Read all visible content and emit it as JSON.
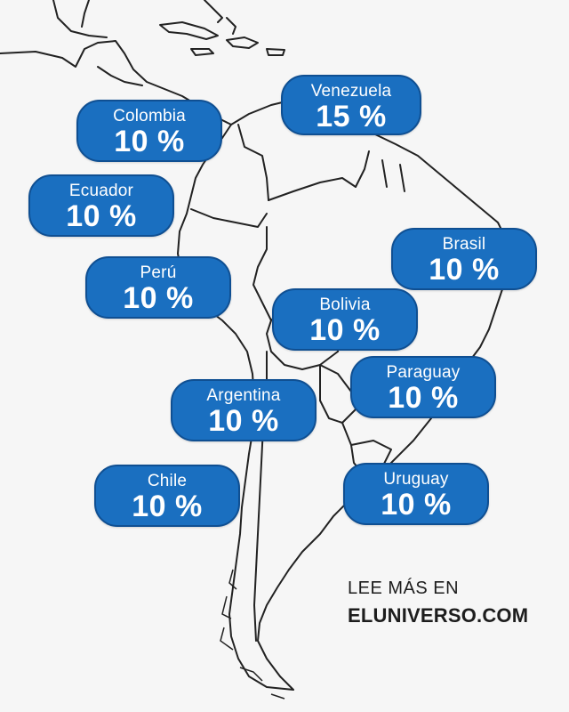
{
  "countries": [
    {
      "name": "Venezuela",
      "value": "15 %"
    },
    {
      "name": "Colombia",
      "value": "10 %"
    },
    {
      "name": "Ecuador",
      "value": "10 %"
    },
    {
      "name": "Brasil",
      "value": "10 %"
    },
    {
      "name": "Perú",
      "value": "10 %"
    },
    {
      "name": "Bolivia",
      "value": "10 %"
    },
    {
      "name": "Paraguay",
      "value": "10 %"
    },
    {
      "name": "Argentina",
      "value": "10 %"
    },
    {
      "name": "Chile",
      "value": "10 %"
    },
    {
      "name": "Uruguay",
      "value": "10 %"
    }
  ],
  "footer": {
    "line1": "LEE MÁS EN",
    "line2": "ELUNIVERSO.COM"
  },
  "colors": {
    "label_fill": "#1a6fc0",
    "label_border": "#0f4f92",
    "label_text": "#ffffff",
    "map_lines": "#222222",
    "background": "#f6f6f6"
  }
}
